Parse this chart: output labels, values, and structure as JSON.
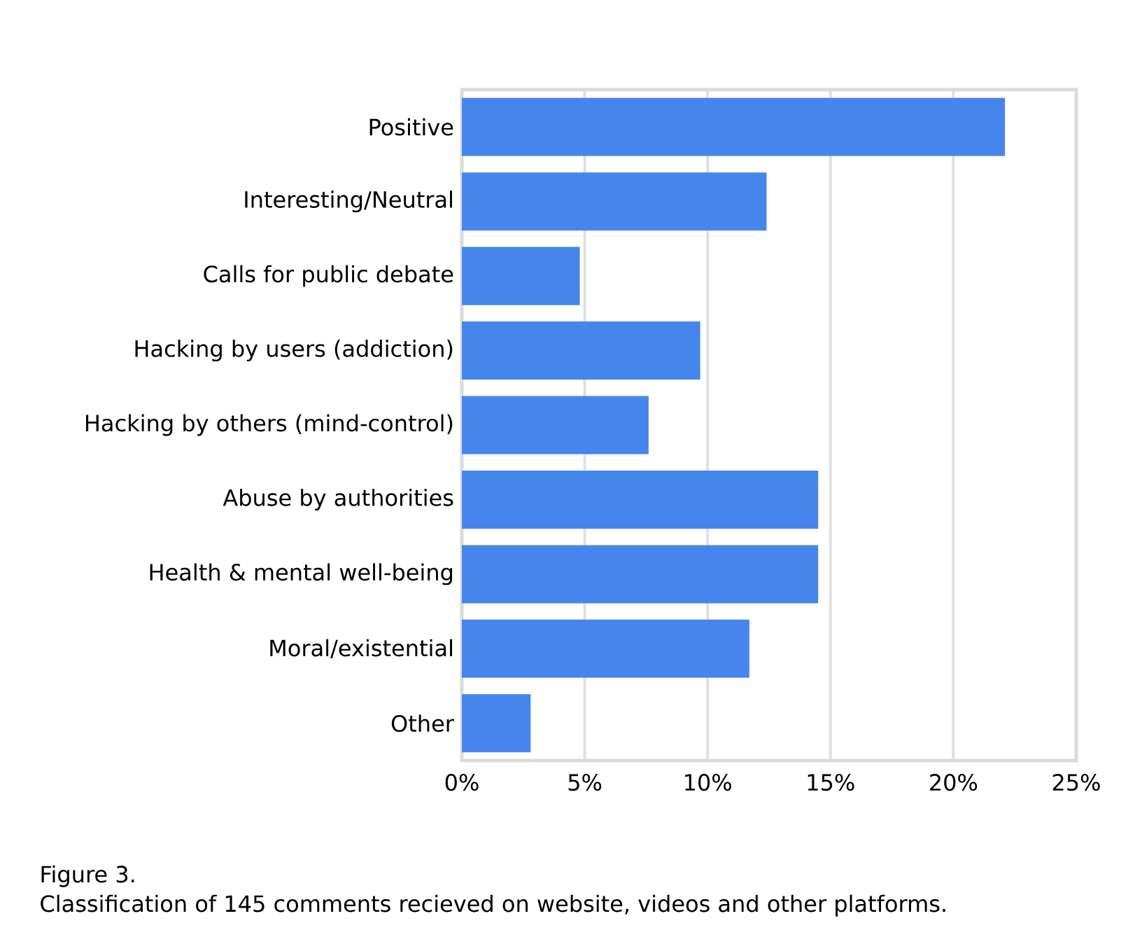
{
  "chart_data": {
    "type": "bar",
    "orientation": "horizontal",
    "categories": [
      "Positive",
      "Interesting/Neutral",
      "Calls for public debate",
      "Hacking by users (addiction)",
      "Hacking by others (mind-control)",
      "Abuse by authorities",
      "Health & mental well-being",
      "Moral/existential",
      "Other"
    ],
    "values": [
      22.1,
      12.4,
      4.8,
      9.7,
      7.6,
      14.5,
      14.5,
      11.7,
      2.8
    ],
    "color": "#4686ec",
    "xlim": [
      0,
      25
    ],
    "xticks": [
      {
        "value": 0,
        "label": "0%"
      },
      {
        "value": 5,
        "label": "5%"
      },
      {
        "value": 10,
        "label": "10%"
      },
      {
        "value": 15,
        "label": "15%"
      },
      {
        "value": 20,
        "label": "20%"
      },
      {
        "value": 25,
        "label": "25%"
      }
    ],
    "grid": "x",
    "annotations": [
      "Figure 3.",
      "Classification of 145 comments recieved on website, videos and other platforms."
    ]
  }
}
